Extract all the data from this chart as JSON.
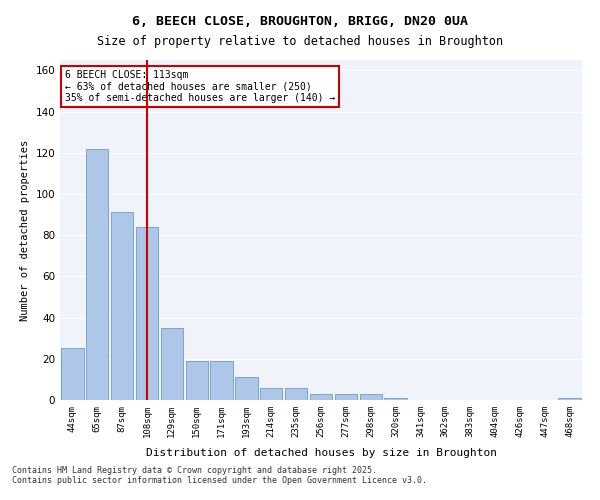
{
  "title_line1": "6, BEECH CLOSE, BROUGHTON, BRIGG, DN20 0UA",
  "title_line2": "Size of property relative to detached houses in Broughton",
  "xlabel": "Distribution of detached houses by size in Broughton",
  "ylabel": "Number of detached properties",
  "categories": [
    "44sqm",
    "65sqm",
    "87sqm",
    "108sqm",
    "129sqm",
    "150sqm",
    "171sqm",
    "193sqm",
    "214sqm",
    "235sqm",
    "256sqm",
    "277sqm",
    "298sqm",
    "320sqm",
    "341sqm",
    "362sqm",
    "383sqm",
    "404sqm",
    "426sqm",
    "447sqm",
    "468sqm"
  ],
  "values": [
    25,
    122,
    91,
    84,
    35,
    19,
    19,
    11,
    6,
    6,
    3,
    3,
    3,
    1,
    0,
    0,
    0,
    0,
    0,
    0,
    1
  ],
  "bar_color": "#aec6e8",
  "bar_edge_color": "#5a8fc0",
  "vline_position": 3.5,
  "vline_color": "#cc0000",
  "annotation_text": "6 BEECH CLOSE: 113sqm\n← 63% of detached houses are smaller (250)\n35% of semi-detached houses are larger (140) →",
  "annotation_box_color": "#ffffff",
  "annotation_box_edge_color": "#cc0000",
  "ylim": [
    0,
    165
  ],
  "yticks": [
    0,
    20,
    40,
    60,
    80,
    100,
    120,
    140,
    160
  ],
  "bg_color": "#f0f4fa",
  "footer_text": "Contains HM Land Registry data © Crown copyright and database right 2025.\nContains public sector information licensed under the Open Government Licence v3.0.",
  "grid_color": "#ffffff",
  "fig_bg_color": "#ffffff"
}
